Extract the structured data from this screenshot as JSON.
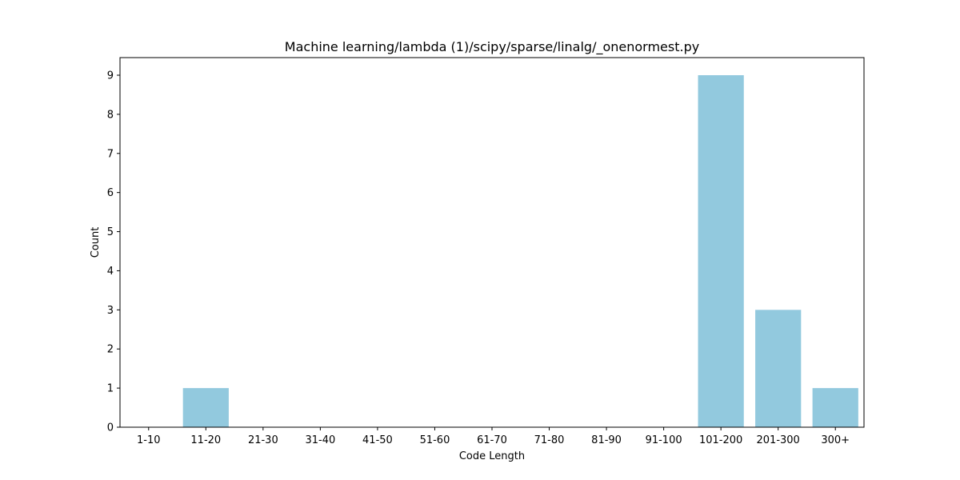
{
  "chart_data": {
    "type": "bar",
    "title": "Machine learning/lambda (1)/scipy/sparse/linalg/_onenormest.py",
    "xlabel": "Code Length",
    "ylabel": "Count",
    "categories": [
      "1-10",
      "11-20",
      "21-30",
      "31-40",
      "41-50",
      "51-60",
      "61-70",
      "71-80",
      "81-90",
      "91-100",
      "101-200",
      "201-300",
      "300+"
    ],
    "values": [
      0,
      1,
      0,
      0,
      0,
      0,
      0,
      0,
      0,
      0,
      9,
      3,
      1
    ],
    "ylim": [
      0,
      9.45
    ],
    "yticks": [
      0,
      1,
      2,
      3,
      4,
      5,
      6,
      7,
      8,
      9
    ],
    "bar_color": "#92c9de",
    "grid": false,
    "legend": "none"
  }
}
